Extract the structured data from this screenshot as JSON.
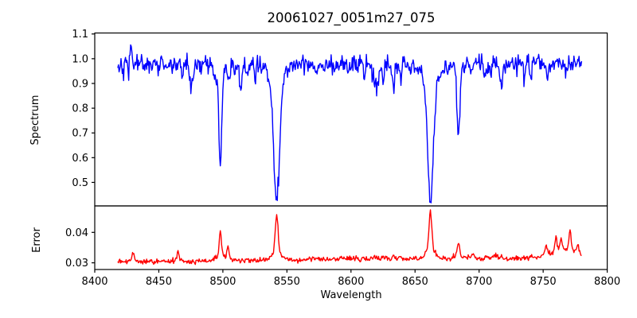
{
  "title": "20061027_0051m27_075",
  "xlabel": "Wavelength",
  "ylabel_top": "Spectrum",
  "ylabel_bottom": "Error",
  "x_ticks": [
    "8400",
    "8450",
    "8500",
    "8550",
    "8600",
    "8650",
    "8700",
    "8750",
    "8800"
  ],
  "spectrum_yticks": [
    "1.1",
    "1.0",
    "0.9",
    "0.8",
    "0.7",
    "0.6",
    "0.5"
  ],
  "error_yticks": [
    "0.04",
    "0.03"
  ],
  "colors": {
    "spectrum": "#0000ff",
    "error": "#ff0000",
    "axis": "#000000"
  },
  "chart_data": [
    {
      "type": "line",
      "name": "Spectrum",
      "color": "blue",
      "x_start": 8418,
      "x_end": 8780,
      "x_step": 0.5,
      "xlim": [
        8400,
        8800
      ],
      "ylim": [
        0.405,
        1.104
      ],
      "continuum": 0.98,
      "noise_sigma": 0.018,
      "noise_seed": 42,
      "absorption_lines": [
        {
          "center": 8475,
          "min": 0.89,
          "width": 0.9
        },
        {
          "center": 8498,
          "min": 0.555,
          "core_width": 1.1,
          "wing_frac": 0.09,
          "wing_width": 4
        },
        {
          "center": 8505,
          "min": 0.9,
          "width": 0.8
        },
        {
          "center": 8514,
          "min": 0.875,
          "width": 1.0
        },
        {
          "center": 8542,
          "min": 0.425,
          "core_width": 2.2,
          "wing_frac": 0.13,
          "wing_width": 5.5
        },
        {
          "center": 8621,
          "min": 0.9,
          "width": 1.0
        },
        {
          "center": 8662,
          "min": 0.43,
          "core_width": 2.2,
          "wing_frac": 0.13,
          "wing_width": 5.5
        },
        {
          "center": 8684,
          "min": 0.745,
          "core_width": 1.1,
          "wing_frac": 0.08,
          "wing_width": 3
        }
      ],
      "spikes": [
        {
          "center": 8428,
          "height": 0.11,
          "width": 0.7
        }
      ],
      "minor_line_forest": {
        "count": 72,
        "depth_range": [
          0.01,
          0.06
        ],
        "width_range": [
          0.4,
          0.9
        ],
        "seed": 7
      }
    },
    {
      "type": "line",
      "name": "Error",
      "color": "red",
      "x_start": 8418,
      "x_end": 8780,
      "x_step": 0.5,
      "xlim": [
        8400,
        8800
      ],
      "ylim": [
        0.0278,
        0.0487
      ],
      "baseline_start": 0.0302,
      "baseline_end": 0.0316,
      "noise_sigma": 0.00042,
      "noise_seed": 99,
      "forest_coupling": 0.008,
      "peaks": [
        {
          "center": 8430,
          "peak": 0.0336,
          "width": 0.8
        },
        {
          "center": 8465,
          "peak": 0.0336,
          "width": 0.8
        },
        {
          "center": 8498,
          "peak": 0.0401,
          "width": 0.9
        },
        {
          "center": 8504,
          "peak": 0.0347,
          "width": 0.8
        },
        {
          "center": 8542,
          "peak": 0.0452,
          "width": 1.1
        },
        {
          "center": 8662,
          "peak": 0.0468,
          "width": 1.1
        },
        {
          "center": 8684,
          "peak": 0.0362,
          "width": 0.9
        },
        {
          "center": 8695,
          "peak": 0.033,
          "width": 1.0
        },
        {
          "center": 8713,
          "peak": 0.0328,
          "width": 1.0
        },
        {
          "center": 8752,
          "peak": 0.0349,
          "width": 1.0
        },
        {
          "center": 8760,
          "peak": 0.0371,
          "width": 0.8
        },
        {
          "center": 8764,
          "peak": 0.0362,
          "width": 0.8
        },
        {
          "center": 8771,
          "peak": 0.0393,
          "width": 0.8
        },
        {
          "center": 8777,
          "peak": 0.0352,
          "width": 0.8
        }
      ],
      "broad_bumps": [
        {
          "center": 8767,
          "height": 0.0016,
          "width": 9
        },
        {
          "center": 8600,
          "height": 0.0004,
          "width": 40
        }
      ]
    }
  ]
}
